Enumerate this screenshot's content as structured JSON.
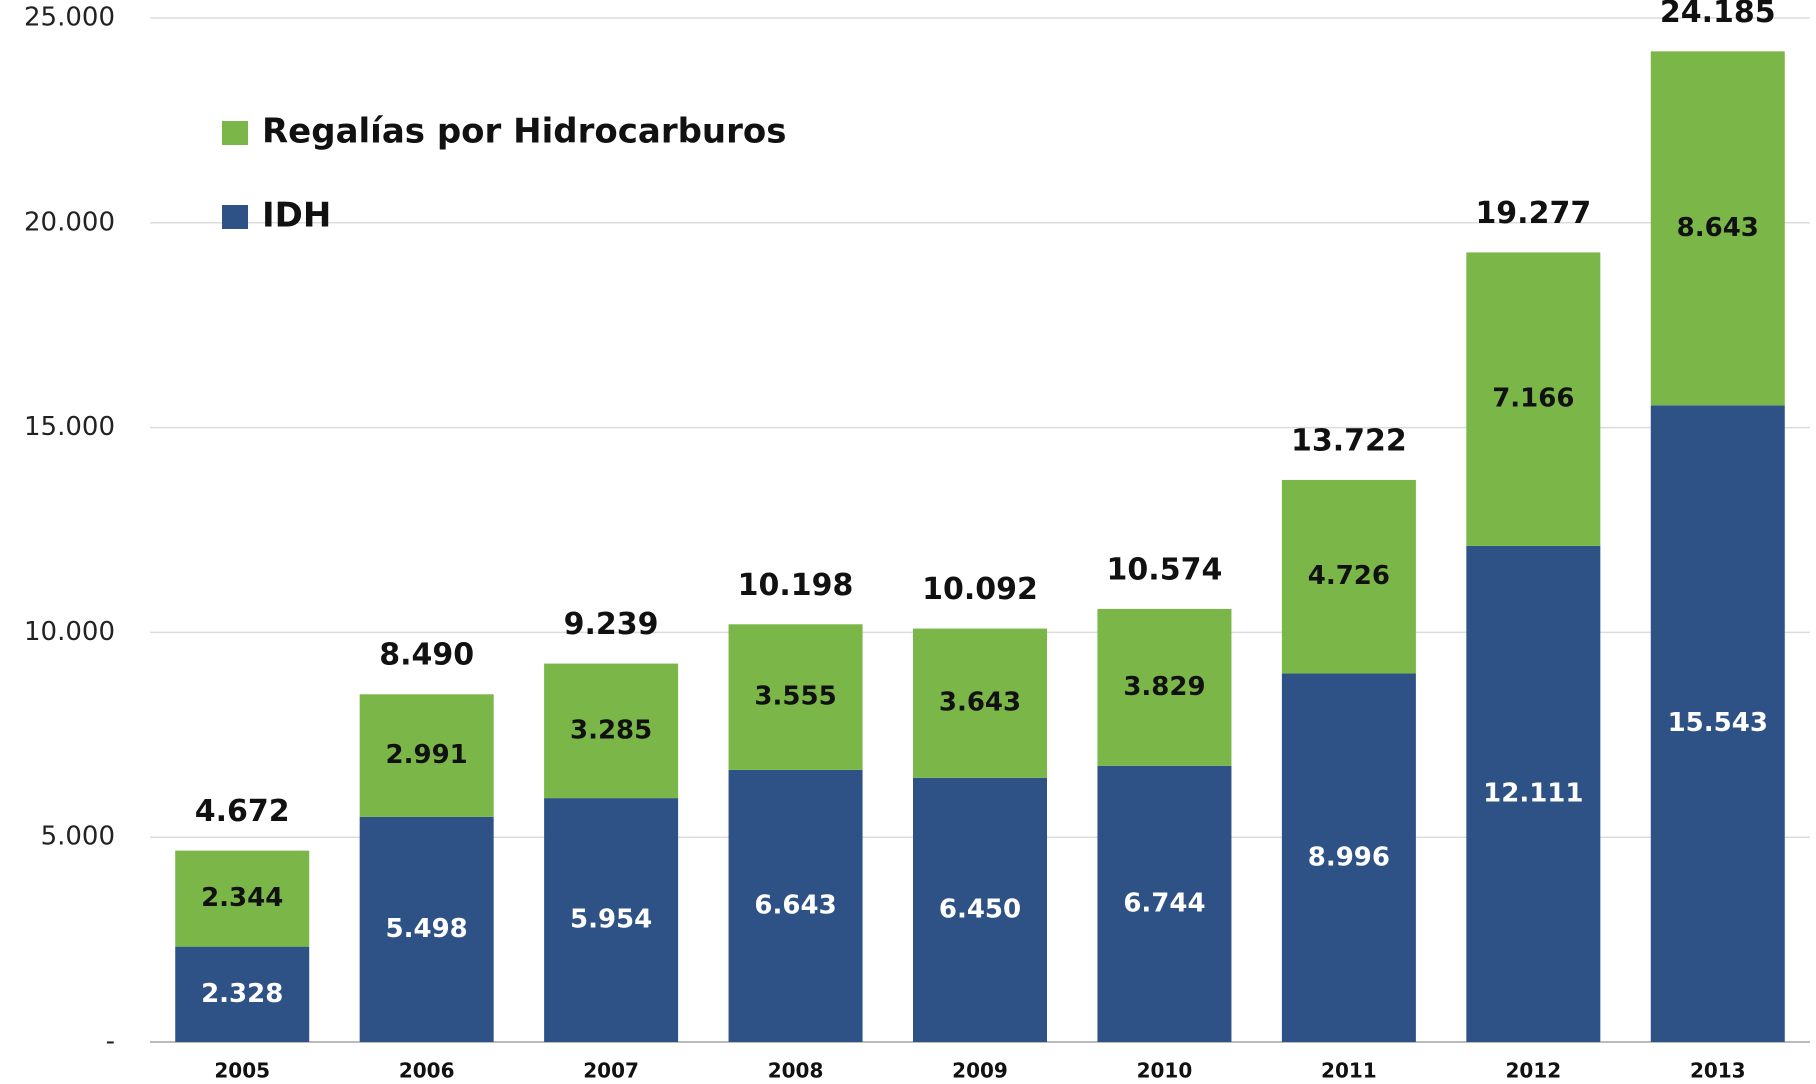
{
  "chart_data": {
    "type": "stacked_bar",
    "categories": [
      "2005",
      "2006",
      "2007",
      "2008",
      "2009",
      "2010",
      "2011",
      "2012",
      "2013"
    ],
    "series": [
      {
        "name": "IDH",
        "color": "#2f5286",
        "values": [
          2328,
          5498,
          5954,
          6643,
          6450,
          6744,
          8996,
          12111,
          15543
        ],
        "value_labels": [
          "2.328",
          "5.498",
          "5.954",
          "6.643",
          "6.450",
          "6.744",
          "8.996",
          "12.111",
          "15.543"
        ]
      },
      {
        "name": "Regalías por Hidrocarburos",
        "color": "#7ab648",
        "values": [
          2344,
          2991,
          3285,
          3555,
          3643,
          3829,
          4726,
          7166,
          8643
        ],
        "value_labels": [
          "2.344",
          "2.991",
          "3.285",
          "3.555",
          "3.643",
          "3.829",
          "4.726",
          "7.166",
          "8.643"
        ]
      }
    ],
    "totals": {
      "values": [
        4672,
        8490,
        9239,
        10198,
        10092,
        10574,
        13722,
        19277,
        24185
      ],
      "value_labels": [
        "4.672",
        "8.490",
        "9.239",
        "10.198",
        "10.092",
        "10.574",
        "13.722",
        "19.277",
        "24.185"
      ]
    },
    "ylim": [
      0,
      25000
    ],
    "yticks": [
      {
        "value": 0,
        "label": "-"
      },
      {
        "value": 5000,
        "label": "5.000"
      },
      {
        "value": 10000,
        "label": "10.000"
      },
      {
        "value": 15000,
        "label": "15.000"
      },
      {
        "value": 20000,
        "label": "20.000"
      },
      {
        "value": 25000,
        "label": "25.000"
      }
    ],
    "grid": true
  }
}
